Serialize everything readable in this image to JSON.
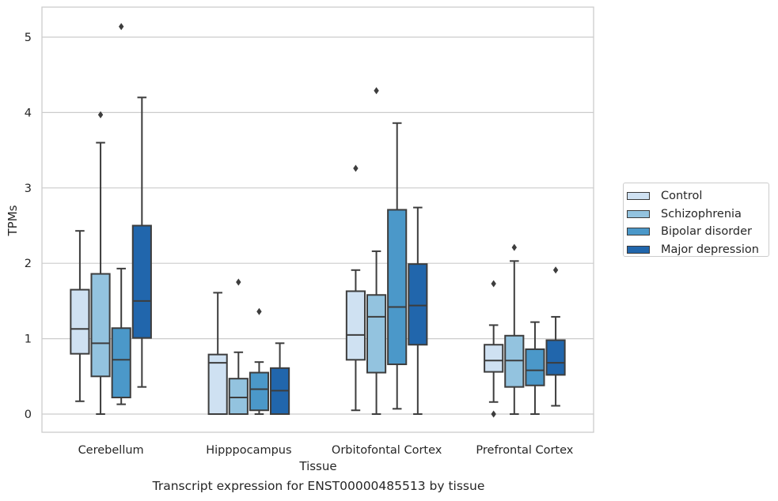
{
  "chart_data": {
    "type": "boxplot",
    "title": "",
    "caption": "Transcript expression for ENST00000485513 by tissue",
    "xlabel": "Tissue",
    "ylabel": "TPMs",
    "ylim": [
      -0.25,
      5.4
    ],
    "yticks": [
      "0",
      "1",
      "2",
      "3",
      "4",
      "5"
    ],
    "grid": "horizontal",
    "legend_position": "right",
    "categories": [
      "Cerebellum",
      "Hipppocampus",
      "Orbitofontal Cortex",
      "Prefrontal Cortex"
    ],
    "series": [
      {
        "name": "Control",
        "color": "#cfe1f2",
        "boxes": [
          {
            "whisker_low": 0.17,
            "q1": 0.8,
            "median": 1.13,
            "q3": 1.65,
            "whisker_high": 2.43,
            "outliers": []
          },
          {
            "whisker_low": 0.0,
            "q1": 0.0,
            "median": 0.68,
            "q3": 0.79,
            "whisker_high": 1.61,
            "outliers": []
          },
          {
            "whisker_low": 0.05,
            "q1": 0.72,
            "median": 1.05,
            "q3": 1.63,
            "whisker_high": 1.91,
            "outliers": [
              3.26
            ]
          },
          {
            "whisker_low": 0.16,
            "q1": 0.56,
            "median": 0.71,
            "q3": 0.92,
            "whisker_high": 1.18,
            "outliers": [
              1.73,
              0.0
            ]
          }
        ]
      },
      {
        "name": "Schizophrenia",
        "color": "#93c3df",
        "boxes": [
          {
            "whisker_low": 0.0,
            "q1": 0.5,
            "median": 0.94,
            "q3": 1.86,
            "whisker_high": 3.6,
            "outliers": [
              3.97
            ]
          },
          {
            "whisker_low": 0.0,
            "q1": 0.0,
            "median": 0.22,
            "q3": 0.47,
            "whisker_high": 0.82,
            "outliers": [
              1.75
            ]
          },
          {
            "whisker_low": 0.0,
            "q1": 0.55,
            "median": 1.29,
            "q3": 1.58,
            "whisker_high": 2.16,
            "outliers": [
              4.29
            ]
          },
          {
            "whisker_low": 0.0,
            "q1": 0.36,
            "median": 0.71,
            "q3": 1.04,
            "whisker_high": 2.03,
            "outliers": [
              2.21
            ]
          }
        ]
      },
      {
        "name": "Bipolar disorder",
        "color": "#4b98c9",
        "boxes": [
          {
            "whisker_low": 0.13,
            "q1": 0.22,
            "median": 0.72,
            "q3": 1.14,
            "whisker_high": 1.93,
            "outliers": [
              5.14
            ]
          },
          {
            "whisker_low": 0.0,
            "q1": 0.05,
            "median": 0.33,
            "q3": 0.55,
            "whisker_high": 0.69,
            "outliers": [
              1.36
            ]
          },
          {
            "whisker_low": 0.07,
            "q1": 0.66,
            "median": 1.42,
            "q3": 2.71,
            "whisker_high": 3.86,
            "outliers": []
          },
          {
            "whisker_low": 0.0,
            "q1": 0.38,
            "median": 0.58,
            "q3": 0.86,
            "whisker_high": 1.22,
            "outliers": []
          }
        ]
      },
      {
        "name": "Major depression",
        "color": "#2166ac",
        "boxes": [
          {
            "whisker_low": 0.36,
            "q1": 1.01,
            "median": 1.5,
            "q3": 2.5,
            "whisker_high": 4.2,
            "outliers": []
          },
          {
            "whisker_low": 0.0,
            "q1": 0.0,
            "median": 0.31,
            "q3": 0.61,
            "whisker_high": 0.94,
            "outliers": []
          },
          {
            "whisker_low": 0.0,
            "q1": 0.92,
            "median": 1.44,
            "q3": 1.99,
            "whisker_high": 2.74,
            "outliers": []
          },
          {
            "whisker_low": 0.11,
            "q1": 0.52,
            "median": 0.68,
            "q3": 0.98,
            "whisker_high": 1.29,
            "outliers": [
              1.91
            ]
          }
        ]
      }
    ]
  }
}
